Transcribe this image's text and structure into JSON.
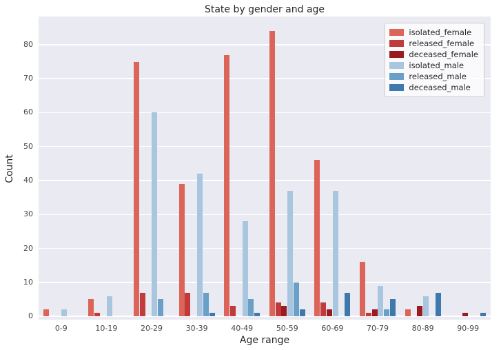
{
  "chart_data": {
    "type": "bar",
    "title": "State by gender and age",
    "xlabel": "Age range",
    "ylabel": "Count",
    "categories": [
      "0-9",
      "10-19",
      "20-29",
      "30-39",
      "40-49",
      "50-59",
      "60-69",
      "70-79",
      "80-89",
      "90-99"
    ],
    "series": [
      {
        "name": "isolated_female",
        "color": "#dd6459",
        "values": [
          2,
          5,
          75,
          39,
          77,
          84,
          46,
          16,
          2,
          0
        ]
      },
      {
        "name": "released_female",
        "color": "#c13a3c",
        "values": [
          0,
          1,
          7,
          7,
          3,
          4,
          4,
          1,
          0,
          0
        ]
      },
      {
        "name": "deceased_female",
        "color": "#9a1c20",
        "values": [
          0,
          0,
          0,
          0,
          0,
          3,
          2,
          2,
          3,
          1
        ]
      },
      {
        "name": "isolated_male",
        "color": "#a8c7de",
        "values": [
          2,
          6,
          60,
          42,
          28,
          37,
          37,
          9,
          6,
          0
        ]
      },
      {
        "name": "released_male",
        "color": "#6aa0c8",
        "values": [
          0,
          0,
          5,
          7,
          5,
          10,
          0,
          2,
          0,
          0
        ]
      },
      {
        "name": "deceased_male",
        "color": "#3d79ad",
        "values": [
          0,
          0,
          0,
          1,
          1,
          2,
          7,
          5,
          7,
          1
        ]
      }
    ],
    "yticks": [
      0,
      10,
      20,
      30,
      40,
      50,
      60,
      70,
      80
    ],
    "ylim": [
      -1,
      88.3
    ],
    "grid": true,
    "legend_position": "upper right",
    "plot_background": "#eaeaf2",
    "grid_color": "#ffffff"
  }
}
